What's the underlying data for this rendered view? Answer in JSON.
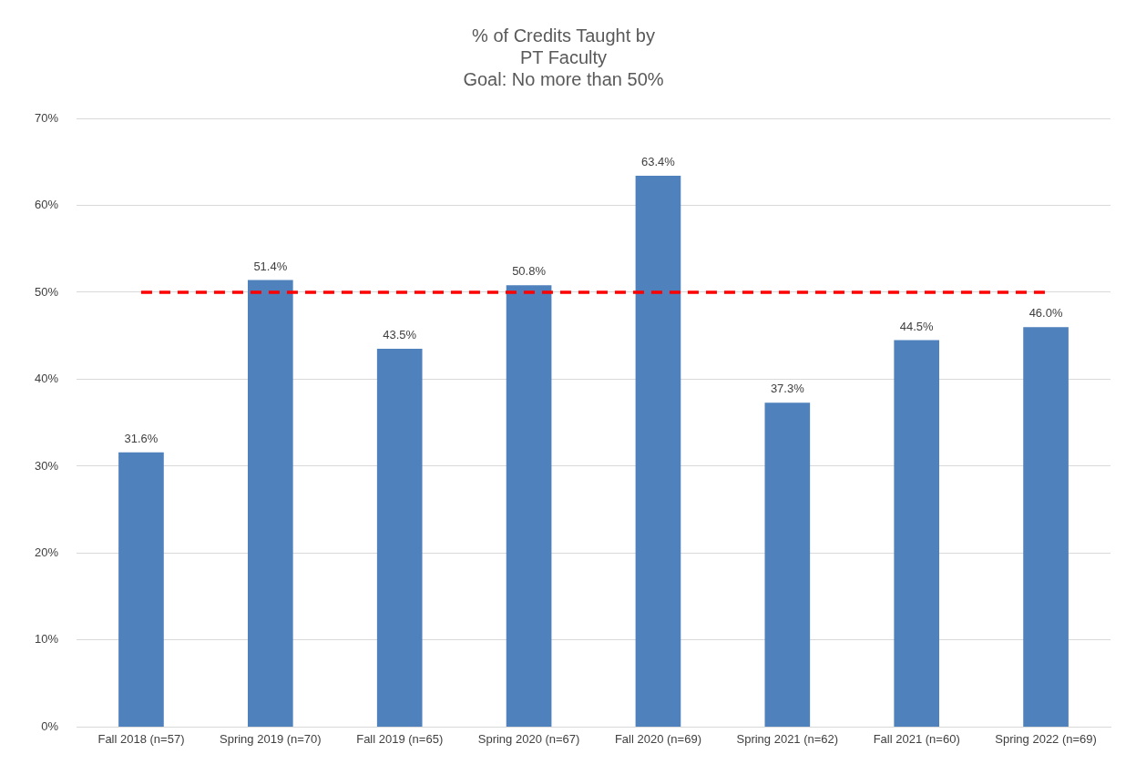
{
  "chart_data": {
    "type": "bar",
    "title": [
      "% of Credits Taught by",
      "PT Faculty",
      "Goal: No more than 50%"
    ],
    "categories": [
      "Fall 2018 (n=57)",
      "Spring 2019 (n=70)",
      "Fall 2019 (n=65)",
      "Spring 2020 (n=67)",
      "Fall 2020 (n=69)",
      "Spring 2021 (n=62)",
      "Fall 2021 (n=60)",
      "Spring 2022 (n=69)"
    ],
    "values": [
      31.6,
      51.4,
      43.5,
      50.8,
      63.4,
      37.3,
      44.5,
      46.0
    ],
    "value_labels": [
      "31.6%",
      "51.4%",
      "43.5%",
      "50.8%",
      "63.4%",
      "37.3%",
      "44.5%",
      "46.0%"
    ],
    "color": "#4f81bd",
    "ylim": [
      0,
      70
    ],
    "yticks": [
      {
        "value": 0,
        "label": "0%"
      },
      {
        "value": 10,
        "label": "10%"
      },
      {
        "value": 20,
        "label": "20%"
      },
      {
        "value": 30,
        "label": "30%"
      },
      {
        "value": 40,
        "label": "40%"
      },
      {
        "value": 50,
        "label": "50%"
      },
      {
        "value": 60,
        "label": "60%"
      },
      {
        "value": 70,
        "label": "70%"
      }
    ],
    "ref_lines": [
      {
        "axis": "y",
        "value": 50,
        "color": "#ff0000",
        "line_style": "dashed"
      }
    ],
    "grid": "y",
    "legend": false
  }
}
